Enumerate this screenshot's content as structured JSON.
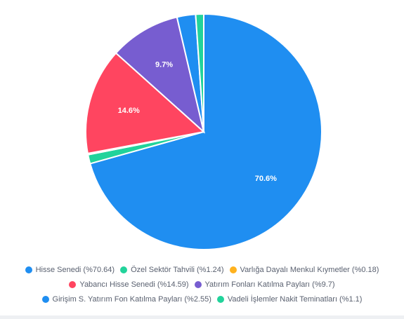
{
  "chart_data": {
    "type": "pie",
    "slices": [
      {
        "name": "Hisse Senedi",
        "value": 70.64,
        "color": "#1f8ef1",
        "label": "70.6%"
      },
      {
        "name": "Özel Sektör Tahvili",
        "value": 1.24,
        "color": "#22d39b",
        "label": ""
      },
      {
        "name": "Varlığa Dayalı Menkul Kıymetler",
        "value": 0.18,
        "color": "#ffb21e",
        "label": ""
      },
      {
        "name": "Yabancı Hisse Senedi",
        "value": 14.59,
        "color": "#ff4560",
        "label": "14.6%"
      },
      {
        "name": "Yatırım Fonları Katılma Payları",
        "value": 9.7,
        "color": "#775dd0",
        "label": "9.7%"
      },
      {
        "name": "Girişim S. Yatırım Fon Katılma Payları",
        "value": 2.55,
        "color": "#1f8ef1",
        "label": ""
      },
      {
        "name": "Vadeli İşlemler Nakit Teminatları",
        "value": 1.1,
        "color": "#22d39b",
        "label": ""
      }
    ],
    "legend_position": "bottom"
  },
  "legend": [
    [
      "Hisse Senedi (%70.64)",
      "Özel Sektör Tahvili (%1.24)",
      "Varlığa Dayalı Menkul Kıymetler (%0.18)"
    ],
    [
      "Yabancı Hisse Senedi (%14.59)",
      "Yatırım Fonları Katılma Payları (%9.7)"
    ],
    [
      "Girişim S. Yatırım Fon Katılma Payları (%2.55)",
      "Vadeli İşlemler Nakit Teminatları (%1.1)"
    ]
  ]
}
